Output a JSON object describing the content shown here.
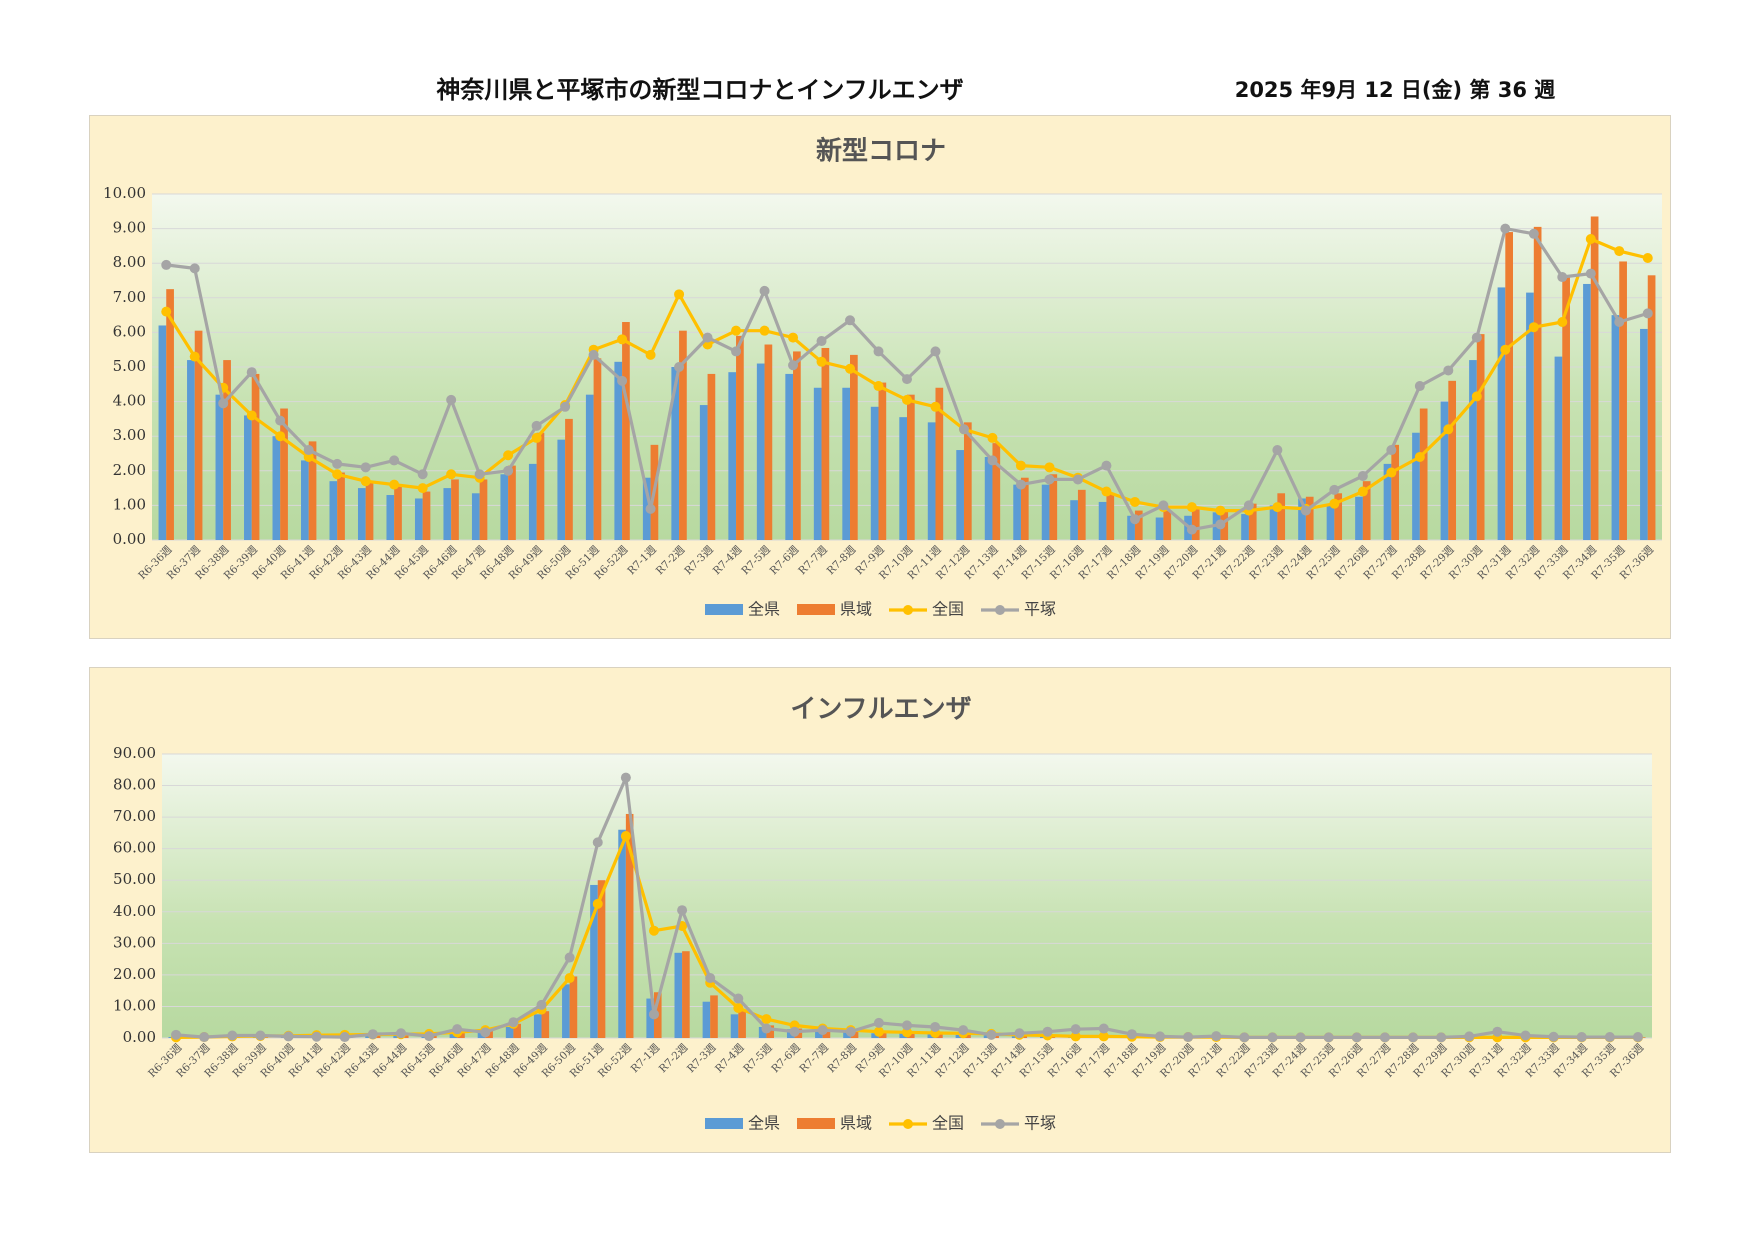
{
  "header": {
    "title": "神奈川県と平塚市の新型コロナとインフルエンザ",
    "date": "2025 年9月 12 日(金) 第 36 週"
  },
  "colors": {
    "zenken": "#5b9bd5",
    "kenki": "#ed7d31",
    "zenkoku": "#ffc000",
    "hiratsuka": "#a5a5a5",
    "panel_bg": "#fdf1cc"
  },
  "chart_data": [
    {
      "type": "bar",
      "title": "新型コロナ",
      "ylim": [
        0,
        10
      ],
      "yticks": [
        "0.00",
        "1.00",
        "2.00",
        "3.00",
        "4.00",
        "5.00",
        "6.00",
        "7.00",
        "8.00",
        "9.00",
        "10.00"
      ],
      "grid": true,
      "legend_position": "bottom",
      "categories": [
        "R6-36週",
        "R6-37週",
        "R6-38週",
        "R6-39週",
        "R6-40週",
        "R6-41週",
        "R6-42週",
        "R6-43週",
        "R6-44週",
        "R6-45週",
        "R6-46週",
        "R6-47週",
        "R6-48週",
        "R6-49週",
        "R6-50週",
        "R6-51週",
        "R6-52週",
        "R7-1週",
        "R7-2週",
        "R7-3週",
        "R7-4週",
        "R7-5週",
        "R7-6週",
        "R7-7週",
        "R7-8週",
        "R7-9週",
        "R7-10週",
        "R7-11週",
        "R7-12週",
        "R7-13週",
        "R7-14週",
        "R7-15週",
        "R7-16週",
        "R7-17週",
        "R7-18週",
        "R7-19週",
        "R7-20週",
        "R7-21週",
        "R7-22週",
        "R7-23週",
        "R7-24週",
        "R7-25週",
        "R7-26週",
        "R7-27週",
        "R7-28週",
        "R7-29週",
        "R7-30週",
        "R7-31週",
        "R7-32週",
        "R7-33週",
        "R7-34週",
        "R7-35週",
        "R7-36週"
      ],
      "series": [
        {
          "name": "全県",
          "kind": "bar",
          "values": [
            6.2,
            5.2,
            4.2,
            3.6,
            3.0,
            2.3,
            1.7,
            1.5,
            1.3,
            1.2,
            1.5,
            1.35,
            1.9,
            2.2,
            2.9,
            4.2,
            5.15,
            1.8,
            5.0,
            3.9,
            4.85,
            5.1,
            4.8,
            4.4,
            4.4,
            3.85,
            3.55,
            3.4,
            2.6,
            2.4,
            1.6,
            1.6,
            1.15,
            1.1,
            0.7,
            0.65,
            0.7,
            0.8,
            0.75,
            1.0,
            1.2,
            1.05,
            1.25,
            2.2,
            3.1,
            4.0,
            5.2,
            7.3,
            7.15,
            5.3,
            7.4,
            6.5,
            6.1
          ]
        },
        {
          "name": "県域",
          "kind": "bar",
          "values": [
            7.25,
            6.05,
            5.2,
            4.8,
            3.8,
            2.85,
            1.95,
            1.7,
            1.55,
            1.4,
            1.75,
            1.75,
            2.15,
            3.1,
            3.5,
            5.25,
            6.3,
            2.75,
            6.05,
            4.8,
            5.9,
            5.65,
            5.45,
            5.55,
            5.35,
            4.55,
            4.2,
            4.4,
            3.4,
            2.8,
            1.8,
            1.9,
            1.45,
            1.35,
            0.85,
            0.85,
            0.9,
            0.85,
            1.05,
            1.35,
            1.25,
            1.35,
            1.7,
            2.75,
            3.8,
            4.6,
            5.95,
            8.9,
            9.05,
            7.6,
            9.35,
            8.05,
            7.65
          ]
        },
        {
          "name": "全国",
          "kind": "line",
          "values": [
            6.6,
            5.3,
            4.4,
            3.6,
            3.0,
            2.4,
            1.9,
            1.7,
            1.6,
            1.5,
            1.9,
            1.8,
            2.45,
            2.95,
            3.9,
            5.5,
            5.8,
            5.35,
            7.1,
            5.65,
            6.05,
            6.05,
            5.85,
            5.15,
            4.95,
            4.45,
            4.05,
            3.85,
            3.2,
            2.95,
            2.15,
            2.1,
            1.8,
            1.4,
            1.1,
            0.95,
            0.95,
            0.85,
            0.85,
            0.95,
            0.9,
            1.05,
            1.4,
            1.95,
            2.4,
            3.2,
            4.15,
            5.5,
            6.15,
            6.3,
            8.7,
            8.35,
            8.15
          ]
        },
        {
          "name": "平塚",
          "kind": "line",
          "values": [
            7.95,
            7.85,
            3.95,
            4.85,
            3.45,
            2.6,
            2.2,
            2.1,
            2.3,
            1.9,
            4.05,
            1.9,
            2.0,
            3.3,
            3.85,
            5.35,
            4.6,
            0.9,
            5.0,
            5.85,
            5.45,
            7.2,
            5.05,
            5.75,
            6.35,
            5.45,
            4.65,
            5.45,
            3.2,
            2.3,
            1.6,
            1.75,
            1.75,
            2.15,
            0.6,
            1.0,
            0.3,
            0.45,
            1.0,
            2.6,
            0.85,
            1.45,
            1.85,
            2.6,
            4.45,
            4.9,
            5.85,
            9.0,
            8.85,
            7.6,
            7.7,
            6.3,
            6.55
          ]
        }
      ]
    },
    {
      "type": "bar",
      "title": "インフルエンザ",
      "ylim": [
        0,
        90
      ],
      "yticks": [
        "0.00",
        "10.00",
        "20.00",
        "30.00",
        "40.00",
        "50.00",
        "60.00",
        "70.00",
        "80.00",
        "90.00"
      ],
      "grid": true,
      "legend_position": "bottom",
      "categories": [
        "R6-36週",
        "R6-37週",
        "R6-38週",
        "R6-39週",
        "R6-40週",
        "R6-41週",
        "R6-42週",
        "R6-43週",
        "R6-44週",
        "R6-45週",
        "R6-46週",
        "R6-47週",
        "R6-48週",
        "R6-49週",
        "R6-50週",
        "R6-51週",
        "R6-52週",
        "R7-1週",
        "R7-2週",
        "R7-3週",
        "R7-4週",
        "R7-5週",
        "R7-6週",
        "R7-7週",
        "R7-8週",
        "R7-9週",
        "R7-10週",
        "R7-11週",
        "R7-12週",
        "R7-13週",
        "R7-14週",
        "R7-15週",
        "R7-16週",
        "R7-17週",
        "R7-18週",
        "R7-19週",
        "R7-20週",
        "R7-21週",
        "R7-22週",
        "R7-23週",
        "R7-24週",
        "R7-25週",
        "R7-26週",
        "R7-27週",
        "R7-28週",
        "R7-29週",
        "R7-30週",
        "R7-31週",
        "R7-32週",
        "R7-33週",
        "R7-34週",
        "R7-35週",
        "R7-36週"
      ],
      "series": [
        {
          "name": "全県",
          "kind": "bar",
          "values": [
            0.3,
            0.3,
            0.4,
            0.4,
            0.4,
            0.5,
            0.6,
            0.7,
            0.8,
            0.9,
            1.5,
            2.0,
            3.5,
            7.5,
            17.0,
            48.5,
            66.0,
            12.5,
            27.0,
            11.5,
            7.5,
            3.5,
            2.8,
            2.2,
            1.8,
            1.5,
            1.4,
            1.2,
            1.0,
            0.8,
            0.6,
            0.5,
            0.5,
            0.5,
            0.4,
            0.3,
            0.3,
            0.3,
            0.2,
            0.2,
            0.2,
            0.2,
            0.2,
            0.2,
            0.2,
            0.2,
            0.2,
            0.2,
            0.2,
            0.2,
            0.2,
            0.2,
            0.2
          ]
        },
        {
          "name": "県域",
          "kind": "bar",
          "values": [
            0.4,
            0.4,
            0.5,
            0.5,
            0.5,
            0.6,
            0.7,
            0.8,
            0.9,
            1.0,
            1.8,
            2.5,
            4.5,
            8.5,
            19.5,
            50.0,
            71.0,
            14.5,
            27.5,
            13.5,
            8.5,
            4.0,
            3.0,
            2.5,
            2.0,
            1.8,
            1.6,
            1.4,
            1.1,
            0.9,
            0.7,
            0.6,
            0.6,
            0.5,
            0.4,
            0.3,
            0.3,
            0.3,
            0.2,
            0.2,
            0.2,
            0.2,
            0.2,
            0.2,
            0.2,
            0.2,
            0.2,
            0.2,
            0.2,
            0.2,
            0.2,
            0.2,
            0.2
          ]
        },
        {
          "name": "全国",
          "kind": "line",
          "values": [
            0.2,
            0.3,
            0.5,
            0.6,
            0.7,
            0.9,
            1.0,
            1.1,
            1.2,
            1.3,
            1.8,
            2.5,
            4.5,
            9.0,
            19.0,
            42.5,
            64.0,
            34.0,
            35.5,
            17.5,
            9.5,
            6.0,
            4.0,
            3.0,
            2.5,
            2.0,
            1.8,
            1.6,
            1.5,
            1.3,
            1.0,
            0.8,
            0.5,
            0.5,
            0.4,
            0.3,
            0.3,
            0.3,
            0.2,
            0.2,
            0.2,
            0.2,
            0.2,
            0.2,
            0.2,
            0.2,
            0.2,
            0.2,
            0.2,
            0.2,
            0.2,
            0.2,
            0.2
          ]
        },
        {
          "name": "平塚",
          "kind": "line",
          "values": [
            1.0,
            0.3,
            0.8,
            0.8,
            0.5,
            0.4,
            0.3,
            1.2,
            1.5,
            0.6,
            2.8,
            1.8,
            5.0,
            10.5,
            25.5,
            62.0,
            82.5,
            7.5,
            40.5,
            19.0,
            12.5,
            3.0,
            2.0,
            2.5,
            2.0,
            4.8,
            4.0,
            3.5,
            2.5,
            1.0,
            1.5,
            2.0,
            2.8,
            3.0,
            1.2,
            0.5,
            0.3,
            0.6,
            0.2,
            0.2,
            0.2,
            0.2,
            0.2,
            0.2,
            0.2,
            0.2,
            0.5,
            2.0,
            0.8,
            0.4,
            0.3,
            0.3,
            0.3
          ]
        }
      ]
    }
  ]
}
